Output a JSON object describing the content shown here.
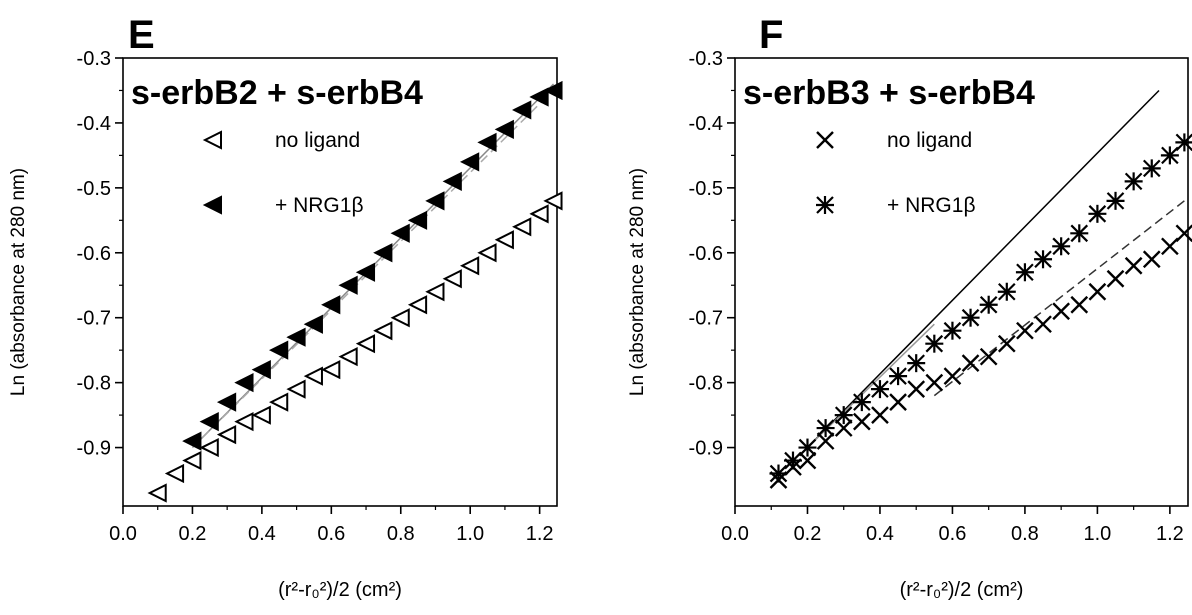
{
  "chart_data": [
    {
      "type": "scatter",
      "panel": "E",
      "title": "s-erbB2 + s-erbB4",
      "xlabel": "(r²-r₀²)/2 (cm²)",
      "ylabel": "Ln (absorbance at 280 nm)",
      "xlim": [
        0.0,
        1.25
      ],
      "ylim": [
        -0.99,
        -0.3
      ],
      "xticks": [
        0.0,
        0.2,
        0.4,
        0.6,
        0.8,
        1.0,
        1.2
      ],
      "xtick_labels": [
        "0.0",
        "0.2",
        "0.4",
        "0.6",
        "0.8",
        "1.0",
        "1.2"
      ],
      "yticks": [
        -0.9,
        -0.8,
        -0.7,
        -0.6,
        -0.5,
        -0.4,
        -0.3
      ],
      "ytick_labels": [
        "-0.9",
        "-0.8",
        "-0.7",
        "-0.6",
        "-0.5",
        "-0.4",
        "-0.3"
      ],
      "legend": "top-left",
      "series": [
        {
          "name": "no ligand",
          "marker": "open-triangle-left",
          "x": [
            0.1,
            0.15,
            0.2,
            0.25,
            0.3,
            0.35,
            0.4,
            0.45,
            0.5,
            0.55,
            0.6,
            0.65,
            0.7,
            0.75,
            0.8,
            0.85,
            0.9,
            0.95,
            1.0,
            1.05,
            1.1,
            1.15,
            1.2,
            1.24
          ],
          "y": [
            -0.97,
            -0.94,
            -0.92,
            -0.9,
            -0.88,
            -0.86,
            -0.85,
            -0.83,
            -0.81,
            -0.79,
            -0.78,
            -0.76,
            -0.74,
            -0.72,
            -0.7,
            -0.68,
            -0.66,
            -0.64,
            -0.62,
            -0.6,
            -0.58,
            -0.56,
            -0.54,
            -0.52
          ]
        },
        {
          "name": "+ NRG1β",
          "marker": "filled-triangle-left",
          "x": [
            0.2,
            0.25,
            0.3,
            0.35,
            0.4,
            0.45,
            0.5,
            0.55,
            0.6,
            0.65,
            0.7,
            0.75,
            0.8,
            0.85,
            0.9,
            0.95,
            1.0,
            1.05,
            1.1,
            1.15,
            1.2,
            1.24
          ],
          "y": [
            -0.89,
            -0.86,
            -0.83,
            -0.8,
            -0.78,
            -0.75,
            -0.73,
            -0.71,
            -0.68,
            -0.65,
            -0.63,
            -0.6,
            -0.57,
            -0.55,
            -0.52,
            -0.49,
            -0.46,
            -0.43,
            -0.41,
            -0.38,
            -0.36,
            -0.35
          ]
        }
      ],
      "fit_lines": [
        {
          "style": "solid",
          "color": "#888888",
          "x": [
            0.2,
            1.24
          ],
          "y": [
            -0.9,
            -0.34
          ]
        },
        {
          "style": "dashed",
          "color": "#aaaaaa",
          "x": [
            0.2,
            1.22
          ],
          "y": [
            -0.9,
            -0.36
          ]
        }
      ]
    },
    {
      "type": "scatter",
      "panel": "F",
      "title": "s-erbB3 + s-erbB4",
      "xlabel": "(r²-r₀²)/2 (cm²)",
      "ylabel": "Ln (absorbance at 280 nm)",
      "xlim": [
        0.0,
        1.25
      ],
      "ylim": [
        -0.99,
        -0.3
      ],
      "xticks": [
        0.0,
        0.2,
        0.4,
        0.6,
        0.8,
        1.0,
        1.2
      ],
      "xtick_labels": [
        "0.0",
        "0.2",
        "0.4",
        "0.6",
        "0.8",
        "1.0",
        "1.2"
      ],
      "yticks": [
        -0.9,
        -0.8,
        -0.7,
        -0.6,
        -0.5,
        -0.4,
        -0.3
      ],
      "ytick_labels": [
        "-0.9",
        "-0.8",
        "-0.7",
        "-0.6",
        "-0.5",
        "-0.4",
        "-0.3"
      ],
      "legend": "top-left",
      "series": [
        {
          "name": "no ligand",
          "marker": "cross",
          "x": [
            0.12,
            0.16,
            0.2,
            0.25,
            0.3,
            0.35,
            0.4,
            0.45,
            0.5,
            0.55,
            0.6,
            0.65,
            0.7,
            0.75,
            0.8,
            0.85,
            0.9,
            0.95,
            1.0,
            1.05,
            1.1,
            1.15,
            1.2,
            1.24
          ],
          "y": [
            -0.95,
            -0.93,
            -0.92,
            -0.89,
            -0.87,
            -0.86,
            -0.85,
            -0.83,
            -0.81,
            -0.8,
            -0.79,
            -0.77,
            -0.76,
            -0.74,
            -0.72,
            -0.71,
            -0.69,
            -0.68,
            -0.66,
            -0.64,
            -0.62,
            -0.61,
            -0.59,
            -0.57
          ]
        },
        {
          "name": "+ NRG1β",
          "marker": "asterisk",
          "x": [
            0.12,
            0.16,
            0.2,
            0.25,
            0.3,
            0.35,
            0.4,
            0.45,
            0.5,
            0.55,
            0.6,
            0.65,
            0.7,
            0.75,
            0.8,
            0.85,
            0.9,
            0.95,
            1.0,
            1.05,
            1.1,
            1.15,
            1.2,
            1.24
          ],
          "y": [
            -0.94,
            -0.92,
            -0.9,
            -0.87,
            -0.85,
            -0.83,
            -0.81,
            -0.79,
            -0.77,
            -0.74,
            -0.72,
            -0.7,
            -0.68,
            -0.66,
            -0.63,
            -0.61,
            -0.59,
            -0.57,
            -0.54,
            -0.52,
            -0.49,
            -0.47,
            -0.45,
            -0.43
          ]
        }
      ],
      "fit_lines": [
        {
          "style": "solid",
          "color": "#000000",
          "x": [
            0.2,
            1.17
          ],
          "y": [
            -0.9,
            -0.35
          ]
        },
        {
          "style": "solid",
          "color": "#999999",
          "x": [
            0.2,
            0.55
          ],
          "y": [
            -0.9,
            -0.71
          ]
        },
        {
          "style": "dashed",
          "color": "#333333",
          "x": [
            0.55,
            1.24
          ],
          "y": [
            -0.82,
            -0.52
          ]
        }
      ]
    }
  ]
}
